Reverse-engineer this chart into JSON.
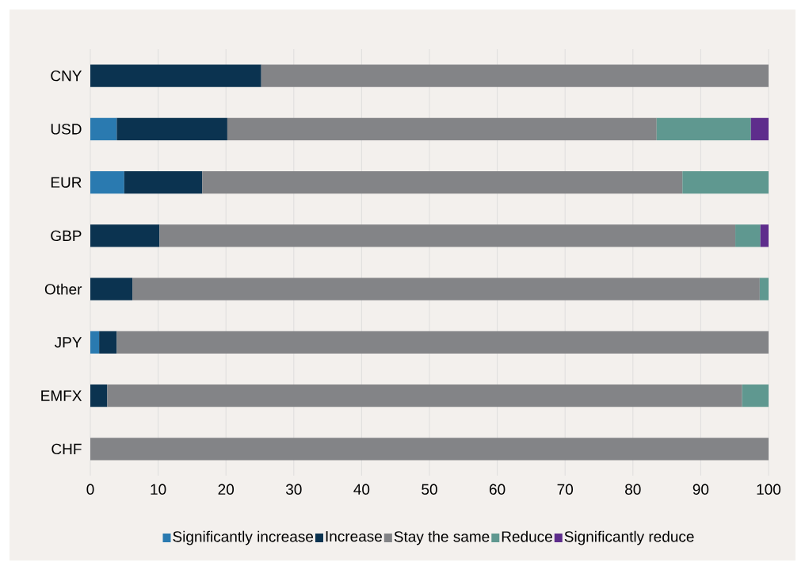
{
  "chart_data": {
    "type": "bar",
    "orientation": "horizontal",
    "stacked": true,
    "categories": [
      "CNY",
      "USD",
      "EUR",
      "GBP",
      "Other",
      "JPY",
      "EMFX",
      "CHF"
    ],
    "series": [
      {
        "name": "Significantly increase",
        "color": "#2a7ab0",
        "values": [
          null,
          3.9,
          5.0,
          null,
          null,
          1.3,
          null,
          null
        ]
      },
      {
        "name": "Increase",
        "color": "#0b3350",
        "values": [
          25.2,
          16.3,
          11.5,
          10.2,
          6.2,
          2.6,
          2.5,
          null
        ]
      },
      {
        "name": "Stay the same",
        "color": "#838487",
        "values": [
          74.8,
          63.3,
          70.8,
          84.9,
          92.5,
          96.1,
          93.6,
          100
        ]
      },
      {
        "name": "Reduce",
        "color": "#5f9890",
        "values": [
          null,
          13.9,
          12.7,
          3.7,
          1.3,
          null,
          3.9,
          null
        ]
      },
      {
        "name": "Significantly reduce",
        "color": "#5e2d8c",
        "values": [
          null,
          2.6,
          null,
          1.2,
          null,
          null,
          null,
          null
        ]
      }
    ],
    "xlim": [
      0,
      100
    ],
    "xticks": [
      0,
      10,
      20,
      30,
      40,
      50,
      60,
      70,
      80,
      90,
      100
    ],
    "grid": "x",
    "legend": "bottom"
  }
}
